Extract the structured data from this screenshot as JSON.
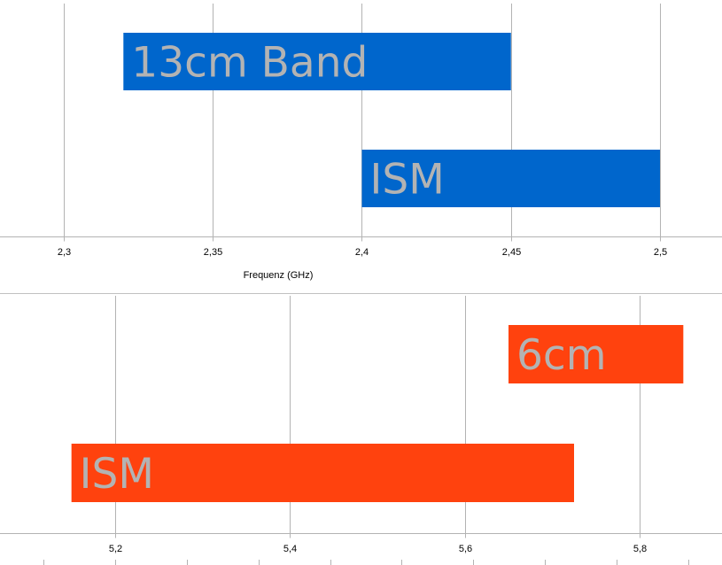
{
  "chart_data": [
    {
      "type": "bar",
      "orientation": "horizontal-range",
      "xlabel": "Frequenz (GHz)",
      "xlim": [
        2.3,
        2.5
      ],
      "xticks": [
        "2,3",
        "2,35",
        "2,4",
        "2,45",
        "2,5"
      ],
      "bars": [
        {
          "label": "13cm Band",
          "start": 2.32,
          "end": 2.45
        },
        {
          "label": "ISM",
          "start": 2.4,
          "end": 2.5
        }
      ],
      "bar_color": "#0066cc",
      "grid": "vertical"
    },
    {
      "type": "bar",
      "orientation": "horizontal-range",
      "xlabel": "",
      "xlim": [
        5.2,
        5.8
      ],
      "xticks": [
        "5,2",
        "5,4",
        "5,6",
        "5,8"
      ],
      "bars": [
        {
          "label": "6cm",
          "start": 5.65,
          "end": 5.85
        },
        {
          "label": "ISM",
          "start": 5.15,
          "end": 5.725
        }
      ],
      "bar_color": "#ff420e",
      "grid": "vertical"
    }
  ]
}
